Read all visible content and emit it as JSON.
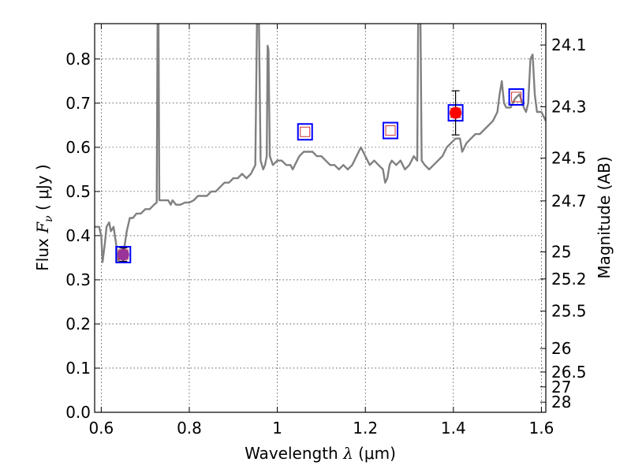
{
  "chart_data": {
    "type": "scatter",
    "xlabel": {
      "prefix": "Wavelength  ",
      "symbol": "λ",
      "unit": " (μm)"
    },
    "ylabel": {
      "prefix": "Flux  ",
      "symbol": "F",
      "sub": "ν",
      "unit": "  ( μJy )"
    },
    "y2label": "Magnitude (AB)",
    "xlim": [
      0.585,
      1.61
    ],
    "ylim": [
      0.0,
      0.88
    ],
    "xticks": [
      "0.6",
      "0.8",
      "1",
      "1.2",
      "1.4",
      "1.6"
    ],
    "yticks": [
      "0.0",
      "0.1",
      "0.2",
      "0.3",
      "0.4",
      "0.5",
      "0.6",
      "0.7",
      "0.8"
    ],
    "mag_ticks": [
      "24.1",
      "24.3",
      "24.5",
      "24.7",
      "25",
      "25.2",
      "25.5",
      "26",
      "26.5",
      "27",
      "28"
    ],
    "grid": true,
    "colors": {
      "spectrum": "#808080",
      "square": "#0000ff",
      "square_inner": "#cc3333",
      "obs": "#ff0000",
      "obs_low": "#993399"
    },
    "spectrum": [
      [
        0.585,
        0.42
      ],
      [
        0.595,
        0.42
      ],
      [
        0.6,
        0.4
      ],
      [
        0.603,
        0.34
      ],
      [
        0.608,
        0.38
      ],
      [
        0.612,
        0.42
      ],
      [
        0.618,
        0.43
      ],
      [
        0.622,
        0.41
      ],
      [
        0.628,
        0.42
      ],
      [
        0.634,
        0.38
      ],
      [
        0.638,
        0.34
      ],
      [
        0.642,
        0.35
      ],
      [
        0.646,
        0.35
      ],
      [
        0.652,
        0.37
      ],
      [
        0.658,
        0.41
      ],
      [
        0.665,
        0.44
      ],
      [
        0.672,
        0.44
      ],
      [
        0.68,
        0.45
      ],
      [
        0.69,
        0.45
      ],
      [
        0.7,
        0.46
      ],
      [
        0.71,
        0.46
      ],
      [
        0.72,
        0.47
      ],
      [
        0.726,
        0.475
      ],
      [
        0.728,
        0.9
      ],
      [
        0.73,
        0.9
      ],
      [
        0.732,
        0.48
      ],
      [
        0.738,
        0.48
      ],
      [
        0.745,
        0.48
      ],
      [
        0.752,
        0.48
      ],
      [
        0.758,
        0.47
      ],
      [
        0.762,
        0.48
      ],
      [
        0.77,
        0.47
      ],
      [
        0.78,
        0.47
      ],
      [
        0.79,
        0.475
      ],
      [
        0.8,
        0.475
      ],
      [
        0.81,
        0.48
      ],
      [
        0.82,
        0.49
      ],
      [
        0.83,
        0.49
      ],
      [
        0.84,
        0.49
      ],
      [
        0.85,
        0.5
      ],
      [
        0.86,
        0.5
      ],
      [
        0.87,
        0.51
      ],
      [
        0.88,
        0.52
      ],
      [
        0.89,
        0.52
      ],
      [
        0.9,
        0.53
      ],
      [
        0.91,
        0.53
      ],
      [
        0.92,
        0.54
      ],
      [
        0.93,
        0.53
      ],
      [
        0.94,
        0.54
      ],
      [
        0.95,
        0.56
      ],
      [
        0.954,
        0.9
      ],
      [
        0.958,
        0.9
      ],
      [
        0.962,
        0.57
      ],
      [
        0.968,
        0.55
      ],
      [
        0.972,
        0.56
      ],
      [
        0.976,
        0.58
      ],
      [
        0.978,
        0.83
      ],
      [
        0.98,
        0.82
      ],
      [
        0.983,
        0.58
      ],
      [
        0.99,
        0.56
      ],
      [
        1.0,
        0.57
      ],
      [
        1.01,
        0.57
      ],
      [
        1.02,
        0.56
      ],
      [
        1.03,
        0.56
      ],
      [
        1.035,
        0.55
      ],
      [
        1.04,
        0.56
      ],
      [
        1.045,
        0.57
      ],
      [
        1.05,
        0.58
      ],
      [
        1.06,
        0.59
      ],
      [
        1.07,
        0.59
      ],
      [
        1.08,
        0.59
      ],
      [
        1.09,
        0.58
      ],
      [
        1.1,
        0.58
      ],
      [
        1.11,
        0.57
      ],
      [
        1.12,
        0.56
      ],
      [
        1.13,
        0.56
      ],
      [
        1.14,
        0.55
      ],
      [
        1.15,
        0.56
      ],
      [
        1.16,
        0.55
      ],
      [
        1.17,
        0.56
      ],
      [
        1.18,
        0.58
      ],
      [
        1.19,
        0.6
      ],
      [
        1.2,
        0.58
      ],
      [
        1.21,
        0.56
      ],
      [
        1.22,
        0.57
      ],
      [
        1.23,
        0.56
      ],
      [
        1.24,
        0.55
      ],
      [
        1.245,
        0.52
      ],
      [
        1.25,
        0.53
      ],
      [
        1.255,
        0.56
      ],
      [
        1.26,
        0.57
      ],
      [
        1.27,
        0.56
      ],
      [
        1.28,
        0.57
      ],
      [
        1.29,
        0.55
      ],
      [
        1.3,
        0.56
      ],
      [
        1.31,
        0.58
      ],
      [
        1.318,
        0.57
      ],
      [
        1.32,
        0.9
      ],
      [
        1.325,
        0.9
      ],
      [
        1.328,
        0.57
      ],
      [
        1.335,
        0.56
      ],
      [
        1.345,
        0.55
      ],
      [
        1.355,
        0.56
      ],
      [
        1.365,
        0.57
      ],
      [
        1.375,
        0.58
      ],
      [
        1.385,
        0.6
      ],
      [
        1.395,
        0.61
      ],
      [
        1.405,
        0.62
      ],
      [
        1.415,
        0.62
      ],
      [
        1.42,
        0.59
      ],
      [
        1.425,
        0.6
      ],
      [
        1.43,
        0.61
      ],
      [
        1.44,
        0.62
      ],
      [
        1.45,
        0.63
      ],
      [
        1.46,
        0.63
      ],
      [
        1.47,
        0.64
      ],
      [
        1.48,
        0.65
      ],
      [
        1.49,
        0.66
      ],
      [
        1.5,
        0.68
      ],
      [
        1.505,
        0.72
      ],
      [
        1.51,
        0.75
      ],
      [
        1.515,
        0.7
      ],
      [
        1.52,
        0.69
      ],
      [
        1.53,
        0.69
      ],
      [
        1.54,
        0.71
      ],
      [
        1.55,
        0.72
      ],
      [
        1.56,
        0.69
      ],
      [
        1.565,
        0.68
      ],
      [
        1.57,
        0.7
      ],
      [
        1.575,
        0.8
      ],
      [
        1.58,
        0.81
      ],
      [
        1.585,
        0.72
      ],
      [
        1.59,
        0.68
      ],
      [
        1.6,
        0.68
      ],
      [
        1.61,
        0.66
      ]
    ],
    "model_points": [
      {
        "x": 0.65,
        "y": 0.357
      },
      {
        "x": 1.063,
        "y": 0.635
      },
      {
        "x": 1.257,
        "y": 0.638
      },
      {
        "x": 1.405,
        "y": 0.678
      },
      {
        "x": 1.543,
        "y": 0.714
      }
    ],
    "observed_points": [
      {
        "x": 0.65,
        "y": 0.357,
        "err": 0.015,
        "color_key": "obs_low"
      },
      {
        "x": 1.405,
        "y": 0.678,
        "err": 0.05,
        "color_key": "obs"
      }
    ]
  }
}
